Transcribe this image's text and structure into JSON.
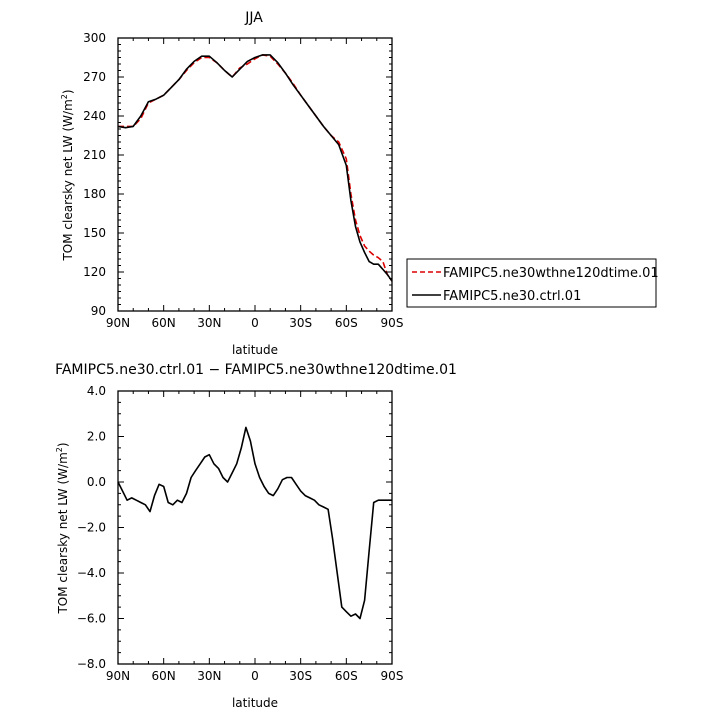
{
  "chart_data": [
    {
      "type": "line",
      "title": "JJA",
      "xlabel": "latitude",
      "ylabel": "TOM clearsky net LW (W/m²)",
      "ylabel_main": "TOM clearsky net LW (W/m",
      "ylabel_sup": "2",
      "ylabel_end": ")",
      "xlim": [
        90,
        -90
      ],
      "ylim": [
        90,
        300
      ],
      "xticks": [
        {
          "v": 90,
          "label": "90N"
        },
        {
          "v": 60,
          "label": "60N"
        },
        {
          "v": 30,
          "label": "30N"
        },
        {
          "v": 0,
          "label": "0"
        },
        {
          "v": -30,
          "label": "30S"
        },
        {
          "v": -60,
          "label": "60S"
        },
        {
          "v": -90,
          "label": "90S"
        }
      ],
      "yticks": [
        {
          "v": 90,
          "label": "90"
        },
        {
          "v": 120,
          "label": "120"
        },
        {
          "v": 150,
          "label": "150"
        },
        {
          "v": 180,
          "label": "180"
        },
        {
          "v": 210,
          "label": "210"
        },
        {
          "v": 240,
          "label": "240"
        },
        {
          "v": 270,
          "label": "270"
        },
        {
          "v": 300,
          "label": "300"
        }
      ],
      "grid": false,
      "legend_position": "right",
      "series": [
        {
          "name": "FAMIPC5.ne30wthne120dtime.01",
          "color": "#dd0000",
          "dash": "dashed",
          "x": [
            90,
            85,
            80,
            75,
            70,
            65,
            60,
            55,
            50,
            45,
            40,
            35,
            30,
            25,
            20,
            15,
            10,
            5,
            0,
            -5,
            -10,
            -15,
            -20,
            -25,
            -30,
            -35,
            -40,
            -45,
            -50,
            -55,
            -60,
            -63,
            -66,
            -69,
            -72,
            -75,
            -78,
            -81,
            -84,
            -87,
            -90
          ],
          "y": [
            232,
            232,
            232,
            238,
            250,
            253,
            256,
            262,
            268,
            275,
            281,
            285,
            285,
            281,
            275,
            270,
            277,
            280,
            284,
            287,
            286,
            280,
            273,
            265,
            256,
            248,
            240,
            232,
            225,
            220,
            207,
            180,
            160,
            148,
            140,
            136,
            133,
            131,
            128,
            118,
            113
          ]
        },
        {
          "name": "FAMIPC5.ne30.ctrl.01",
          "color": "#000000",
          "dash": "solid",
          "x": [
            90,
            85,
            80,
            75,
            70,
            65,
            60,
            55,
            50,
            45,
            40,
            35,
            30,
            25,
            20,
            15,
            10,
            5,
            0,
            -5,
            -10,
            -15,
            -20,
            -25,
            -30,
            -35,
            -40,
            -45,
            -50,
            -55,
            -60,
            -63,
            -66,
            -69,
            -72,
            -75,
            -78,
            -81,
            -84,
            -87,
            -90
          ],
          "y": [
            232,
            231,
            232,
            240,
            251,
            253,
            256,
            262,
            268,
            276,
            282,
            286,
            286,
            281,
            275,
            270,
            276,
            282,
            285,
            287,
            287,
            281,
            273,
            264,
            256,
            248,
            240,
            232,
            225,
            218,
            202,
            175,
            155,
            143,
            135,
            128,
            126,
            126,
            122,
            118,
            113
          ]
        }
      ]
    },
    {
      "type": "line",
      "title": "FAMIPC5.ne30.ctrl.01 − FAMIPC5.ne30wthne120dtime.01",
      "xlabel": "latitude",
      "ylabel": "TOM clearsky net LW (W/m²)",
      "ylabel_main": "TOM clearsky net LW (W/m",
      "ylabel_sup": "2",
      "ylabel_end": ")",
      "xlim": [
        90,
        -90
      ],
      "ylim": [
        -8.0,
        4.0
      ],
      "xticks": [
        {
          "v": 90,
          "label": "90N"
        },
        {
          "v": 60,
          "label": "60N"
        },
        {
          "v": 30,
          "label": "30N"
        },
        {
          "v": 0,
          "label": "0"
        },
        {
          "v": -30,
          "label": "30S"
        },
        {
          "v": -60,
          "label": "60S"
        },
        {
          "v": -90,
          "label": "90S"
        }
      ],
      "yticks": [
        {
          "v": -8,
          "label": "−8.0"
        },
        {
          "v": -6,
          "label": "−6.0"
        },
        {
          "v": -4,
          "label": "−4.0"
        },
        {
          "v": -2,
          "label": "−2.0"
        },
        {
          "v": 0,
          "label": "0.0"
        },
        {
          "v": 2,
          "label": "2.0"
        },
        {
          "v": 4,
          "label": "4.0"
        }
      ],
      "grid": false,
      "series": [
        {
          "color": "#000000",
          "dash": "solid",
          "x": [
            90,
            87,
            84,
            81,
            78,
            75,
            72,
            69,
            66,
            63,
            60,
            57,
            54,
            51,
            48,
            45,
            42,
            39,
            36,
            33,
            30,
            27,
            24,
            21,
            18,
            15,
            12,
            9,
            6,
            3,
            0,
            -3,
            -6,
            -9,
            -12,
            -15,
            -18,
            -21,
            -24,
            -27,
            -30,
            -33,
            -36,
            -39,
            -42,
            -45,
            -48,
            -51,
            -54,
            -57,
            -60,
            -63,
            -66,
            -69,
            -72,
            -75,
            -78,
            -81,
            -84,
            -87,
            -90
          ],
          "y": [
            0.0,
            -0.4,
            -0.8,
            -0.7,
            -0.8,
            -0.9,
            -1.0,
            -1.3,
            -0.6,
            -0.1,
            -0.2,
            -0.9,
            -1.0,
            -0.8,
            -0.9,
            -0.5,
            0.2,
            0.5,
            0.8,
            1.1,
            1.2,
            0.8,
            0.6,
            0.2,
            0.0,
            0.4,
            0.8,
            1.5,
            2.4,
            1.8,
            0.8,
            0.2,
            -0.2,
            -0.5,
            -0.6,
            -0.3,
            0.1,
            0.2,
            0.2,
            -0.1,
            -0.4,
            -0.6,
            -0.7,
            -0.8,
            -1.0,
            -1.1,
            -1.2,
            -2.5,
            -4.0,
            -5.5,
            -5.7,
            -5.9,
            -5.8,
            -6.0,
            -5.2,
            -3.0,
            -0.9,
            -0.8,
            -0.8,
            -0.8,
            -0.8
          ]
        }
      ]
    }
  ]
}
